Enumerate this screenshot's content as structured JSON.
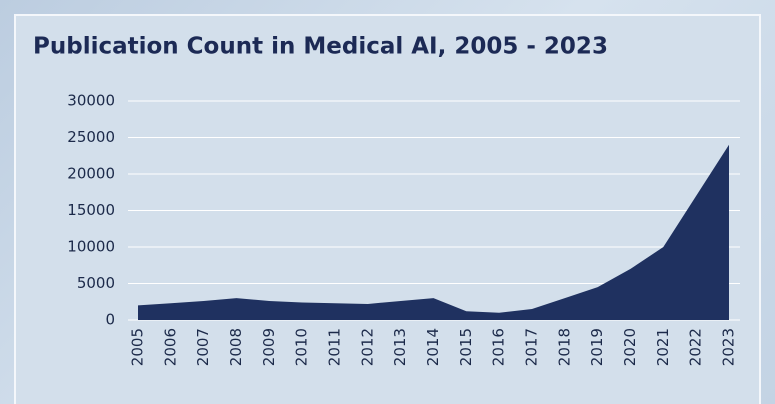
{
  "chart_data": {
    "type": "area",
    "title": "Publication Count in Medical AI, 2005 - 2023",
    "categories": [
      "2005",
      "2006",
      "2007",
      "2008",
      "2009",
      "2010",
      "2011",
      "2012",
      "2013",
      "2014",
      "2015",
      "2016",
      "2017",
      "2018",
      "2019",
      "2020",
      "2021",
      "2022",
      "2023"
    ],
    "values": [
      2000,
      2300,
      2600,
      3000,
      2600,
      2400,
      2300,
      2200,
      2600,
      3000,
      1200,
      1000,
      1500,
      3000,
      4500,
      7000,
      10000,
      17000,
      24000
    ],
    "color": "#1f3160",
    "ylim": [
      0,
      30000
    ],
    "yticks": [
      0,
      5000,
      10000,
      15000,
      20000,
      25000,
      30000
    ],
    "grid": true
  }
}
